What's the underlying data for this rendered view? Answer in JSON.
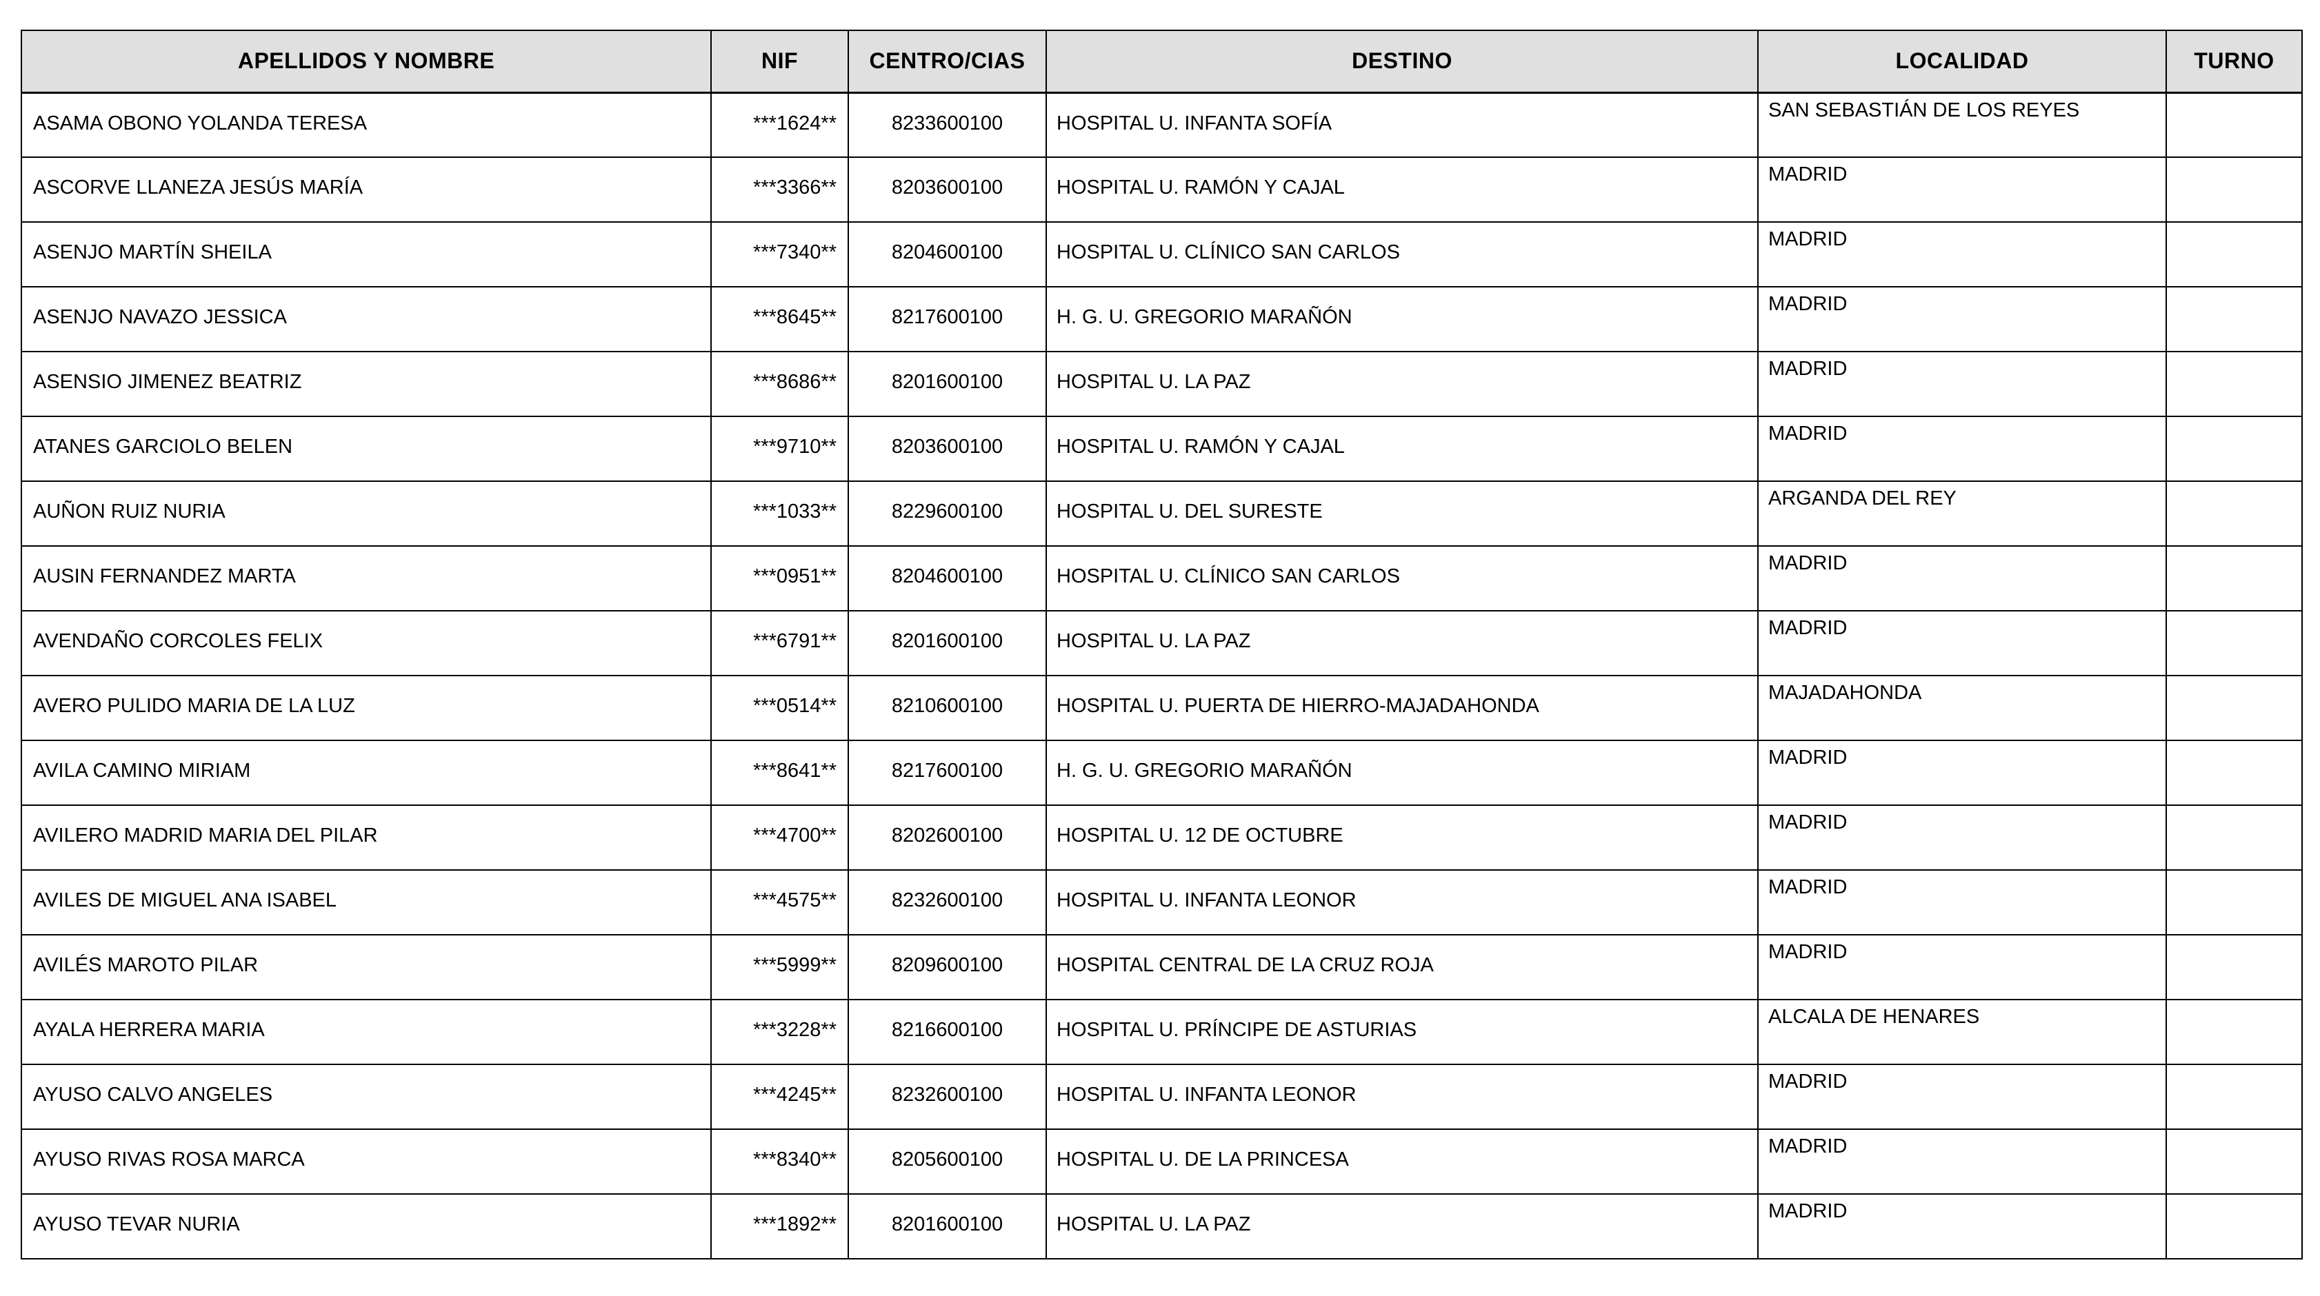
{
  "page": {
    "background_color": "#ffffff",
    "text_color": "#000000"
  },
  "table": {
    "header_background": "#e0e0e0",
    "border_color": "#000000",
    "columns": [
      {
        "key": "nombre",
        "label": "APELLIDOS Y NOMBRE"
      },
      {
        "key": "nif",
        "label": "NIF"
      },
      {
        "key": "centro",
        "label": "CENTRO/CIAS"
      },
      {
        "key": "destino",
        "label": "DESTINO"
      },
      {
        "key": "localidad",
        "label": "LOCALIDAD"
      },
      {
        "key": "turno",
        "label": "TURNO"
      }
    ],
    "rows": [
      {
        "nombre": "ASAMA OBONO YOLANDA TERESA",
        "nif": "***1624**",
        "centro": "8233600100",
        "destino": "HOSPITAL U. INFANTA SOFÍA",
        "localidad": "SAN SEBASTIÁN DE LOS REYES",
        "turno": ""
      },
      {
        "nombre": "ASCORVE LLANEZA JESÚS MARÍA",
        "nif": "***3366**",
        "centro": "8203600100",
        "destino": "HOSPITAL U. RAMÓN Y CAJAL",
        "localidad": "MADRID",
        "turno": ""
      },
      {
        "nombre": "ASENJO MARTÍN SHEILA",
        "nif": "***7340**",
        "centro": "8204600100",
        "destino": "HOSPITAL U. CLÍNICO SAN CARLOS",
        "localidad": "MADRID",
        "turno": ""
      },
      {
        "nombre": "ASENJO NAVAZO JESSICA",
        "nif": "***8645**",
        "centro": "8217600100",
        "destino": "H. G. U. GREGORIO MARAÑÓN",
        "localidad": "MADRID",
        "turno": ""
      },
      {
        "nombre": "ASENSIO JIMENEZ BEATRIZ",
        "nif": "***8686**",
        "centro": "8201600100",
        "destino": "HOSPITAL U. LA PAZ",
        "localidad": "MADRID",
        "turno": ""
      },
      {
        "nombre": "ATANES GARCIOLO BELEN",
        "nif": "***9710**",
        "centro": "8203600100",
        "destino": "HOSPITAL U. RAMÓN Y CAJAL",
        "localidad": "MADRID",
        "turno": ""
      },
      {
        "nombre": "AUÑON RUIZ NURIA",
        "nif": "***1033**",
        "centro": "8229600100",
        "destino": "HOSPITAL U. DEL SURESTE",
        "localidad": "ARGANDA DEL REY",
        "turno": ""
      },
      {
        "nombre": "AUSIN FERNANDEZ MARTA",
        "nif": "***0951**",
        "centro": "8204600100",
        "destino": "HOSPITAL U. CLÍNICO SAN CARLOS",
        "localidad": "MADRID",
        "turno": ""
      },
      {
        "nombre": "AVENDAÑO CORCOLES FELIX",
        "nif": "***6791**",
        "centro": "8201600100",
        "destino": "HOSPITAL U. LA PAZ",
        "localidad": "MADRID",
        "turno": ""
      },
      {
        "nombre": "AVERO PULIDO MARIA DE LA LUZ",
        "nif": "***0514**",
        "centro": "8210600100",
        "destino": "HOSPITAL U. PUERTA DE HIERRO-MAJADAHONDA",
        "localidad": "MAJADAHONDA",
        "turno": ""
      },
      {
        "nombre": "AVILA CAMINO MIRIAM",
        "nif": "***8641**",
        "centro": "8217600100",
        "destino": "H. G. U. GREGORIO MARAÑÓN",
        "localidad": "MADRID",
        "turno": ""
      },
      {
        "nombre": "AVILERO MADRID MARIA DEL PILAR",
        "nif": "***4700**",
        "centro": "8202600100",
        "destino": "HOSPITAL U. 12 DE OCTUBRE",
        "localidad": "MADRID",
        "turno": ""
      },
      {
        "nombre": "AVILES DE MIGUEL ANA ISABEL",
        "nif": "***4575**",
        "centro": "8232600100",
        "destino": "HOSPITAL U. INFANTA LEONOR",
        "localidad": "MADRID",
        "turno": ""
      },
      {
        "nombre": "AVILÉS MAROTO PILAR",
        "nif": "***5999**",
        "centro": "8209600100",
        "destino": "HOSPITAL CENTRAL DE LA CRUZ ROJA",
        "localidad": "MADRID",
        "turno": ""
      },
      {
        "nombre": "AYALA HERRERA MARIA",
        "nif": "***3228**",
        "centro": "8216600100",
        "destino": "HOSPITAL U. PRÍNCIPE DE ASTURIAS",
        "localidad": "ALCALA DE HENARES",
        "turno": ""
      },
      {
        "nombre": "AYUSO CALVO ANGELES",
        "nif": "***4245**",
        "centro": "8232600100",
        "destino": "HOSPITAL U. INFANTA LEONOR",
        "localidad": "MADRID",
        "turno": ""
      },
      {
        "nombre": "AYUSO RIVAS ROSA MARCA",
        "nif": "***8340**",
        "centro": "8205600100",
        "destino": "HOSPITAL U. DE LA PRINCESA",
        "localidad": "MADRID",
        "turno": ""
      },
      {
        "nombre": "AYUSO TEVAR NURIA",
        "nif": "***1892**",
        "centro": "8201600100",
        "destino": "HOSPITAL U. LA PAZ",
        "localidad": "MADRID",
        "turno": ""
      }
    ]
  }
}
